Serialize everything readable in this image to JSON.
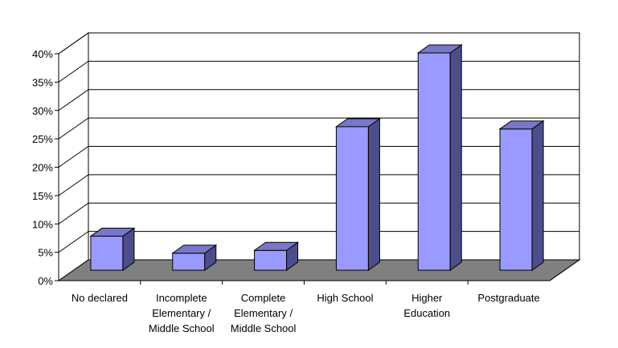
{
  "chart_data": {
    "type": "bar",
    "title": "",
    "xlabel": "",
    "ylabel": "",
    "categories": [
      [
        "No declared"
      ],
      [
        "Incomplete",
        "Elementary /",
        "Middle School"
      ],
      [
        "Complete",
        "Elementary /",
        "Middle School"
      ],
      [
        "High School"
      ],
      [
        "Higher",
        "Education"
      ],
      [
        "Postgraduate"
      ]
    ],
    "values": [
      6,
      3,
      3.5,
      25.3,
      38.3,
      24.9
    ],
    "ylim": [
      0,
      40
    ],
    "y_ticks": [
      "0%",
      "5%",
      "10%",
      "15%",
      "20%",
      "25%",
      "30%",
      "35%",
      "40%"
    ],
    "grid": true,
    "legend": "none",
    "colors": {
      "bar_front": "#9999ff",
      "bar_side": "#4d4d8c",
      "bar_top": "#7777cc",
      "floor": "#808080",
      "outline": "#000000"
    }
  }
}
